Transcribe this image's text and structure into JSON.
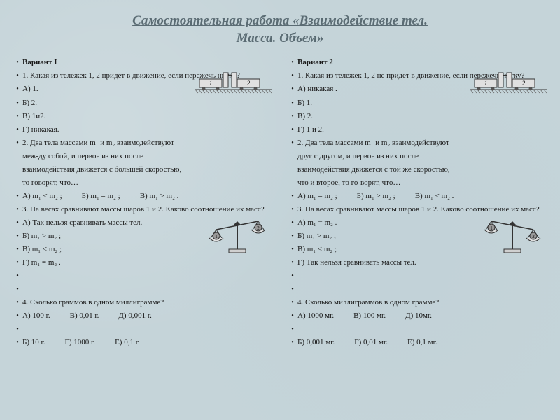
{
  "title_line1": "Самостоятельная работа «Взаимодействие тел.",
  "title_line2": "Масса. Объем»",
  "variants": [
    {
      "heading": "Вариант I",
      "q1_text": "1. Какая из тележек 1, 2 придет в движение, если пережечь нитку?",
      "q1_a": "А) 1.",
      "q1_b": "Б)  2.",
      "q1_c": "В)  1и2.",
      "q1_d": "Г)  никакая.",
      "q2_intro": "2. Два тела массами m₁ и m₂ взаимодействуют",
      "q2_line1": "меж-ду собой, и первое из них после",
      "q2_line2": "взаимодействия движется с большей скоростью,",
      "q2_line3": "то говорят, что…",
      "q2_a": "А) m₁ < m₂ ;",
      "q2_b": "Б) m₁ = m₂ ;",
      "q2_c": "В) m₁ > m₂ .",
      "q3_intro": "3. На весах сравнивают массы шаров 1 и 2. Каково соотношение их масс?",
      "q3_a": "А) Так нельзя сравнивать массы тел.",
      "q3_b": "Б)   m₁ > m₂ ;",
      "q3_c": "В)  m₁ < m₂ ;",
      "q3_d": "Г)  m₁ = m₂ .",
      "q4_text": "4. Сколько граммов в одном миллиграмме?",
      "q4_a": "А) 100 г.",
      "q4_c": "В) 0,01 г.",
      "q4_e": "Д) 0,001 г.",
      "q4_b": "Б)  10 г.",
      "q4_d": "Г) 1000 г.",
      "q4_f": "Е)  0,1 г.",
      "scale_tilt": "left"
    },
    {
      "heading": "Вариант  2",
      "q1_text": "1. Какая из тележек 1, 2 не придет в движение, если пережечь нитку?",
      "q1_a": "А)  никакая .",
      "q1_b": "Б)  1.",
      "q1_c": "В)  2.",
      "q1_d": "Г)  1 и 2.",
      "q2_intro": "2. Два тела массами m₁ и m₂ взаимодействуют",
      "q2_line1": "друг с другом, и первое из них после",
      "q2_line2": "взаимодействия движется с той же скоростью,",
      "q2_line3": "что и второе, то го-ворят, что…",
      "q2_a": "А) m₁ = m₂ ;",
      "q2_b": "Б) m₁ > m₂ ;",
      "q2_c": "В) m₁ < m₂ .",
      "q3_intro": "3. На весах сравнивают массы шаров 1 и 2. Каково соотношение их масс?",
      "q3_a": "А) m₁ = m₂ .",
      "q3_b": "Б)   m₁ > m₂ ;",
      "q3_c": "В)  m₁ < m₂ ;",
      "q3_d": "Г)  Так нельзя сравнивать массы тел.",
      "q4_text": "4. Сколько миллиграммов в одном грамме?",
      "q4_a": "А) 1000 мг.",
      "q4_c": "В) 100 мг.",
      "q4_e": "Д) 10мг.",
      "q4_b": "Б)  0,001 мг.",
      "q4_d": "Г) 0,01 мг.",
      "q4_f": "Е)  0,1 мг.",
      "scale_tilt": "right"
    }
  ],
  "figures": {
    "cart_fill": "#e0e0e0",
    "cart_stroke": "#333333",
    "hatch_color": "#666666",
    "scale_fill": "#d0d0d0",
    "scale_stroke": "#333333"
  }
}
